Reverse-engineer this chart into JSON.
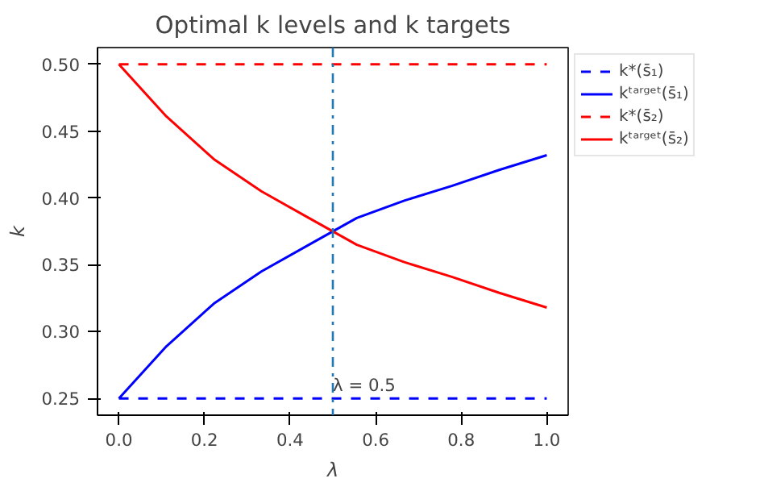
{
  "chart_data": {
    "type": "line",
    "title": "Optimal k levels and k targets",
    "xlabel": "λ",
    "ylabel": "k",
    "x": [
      0,
      0.111,
      0.222,
      0.333,
      0.444,
      0.556,
      0.667,
      0.778,
      0.889,
      1
    ],
    "series": [
      {
        "name": "k*(s̄₁)",
        "color": "#0000ff",
        "line_style": "dashed",
        "values": [
          0.25,
          0.25,
          0.25,
          0.25,
          0.25,
          0.25,
          0.25,
          0.25,
          0.25,
          0.25
        ]
      },
      {
        "name": "kᵗᵃʳᵍᵉᵗ(s̄₁)",
        "color": "#0000ff",
        "line_style": "solid",
        "values": [
          0.25,
          0.289,
          0.321,
          0.345,
          0.365,
          0.385,
          0.398,
          0.409,
          0.421,
          0.432
        ]
      },
      {
        "name": "k*(s̄₂)",
        "color": "#ff0000",
        "line_style": "dashed",
        "values": [
          0.5,
          0.5,
          0.5,
          0.5,
          0.5,
          0.5,
          0.5,
          0.5,
          0.5,
          0.5
        ]
      },
      {
        "name": "kᵗᵃʳᵍᵉᵗ(s̄₂)",
        "color": "#ff0000",
        "line_style": "solid",
        "values": [
          0.5,
          0.461,
          0.429,
          0.405,
          0.385,
          0.365,
          0.352,
          0.341,
          0.329,
          0.318
        ]
      }
    ],
    "ref_lines": [
      {
        "axis": "x",
        "value": 0.5,
        "label": "λ = 0.5",
        "color": "#1f77b4",
        "line_style": "dashdot"
      }
    ],
    "xlim": [
      -0.05,
      1.05
    ],
    "ylim": [
      0.2375,
      0.5125
    ],
    "xticks": [
      {
        "value": 0,
        "label": "0.0"
      },
      0.2,
      0.4,
      0.6,
      0.8,
      {
        "value": 1,
        "label": "1.0"
      }
    ],
    "yticks": [
      0.25,
      {
        "value": 0.3,
        "label": "0.30"
      },
      0.35,
      {
        "value": 0.4,
        "label": "0.40"
      },
      0.45,
      {
        "value": 0.5,
        "label": "0.50"
      }
    ],
    "grid": false,
    "legend": "top right",
    "marker": "none"
  }
}
